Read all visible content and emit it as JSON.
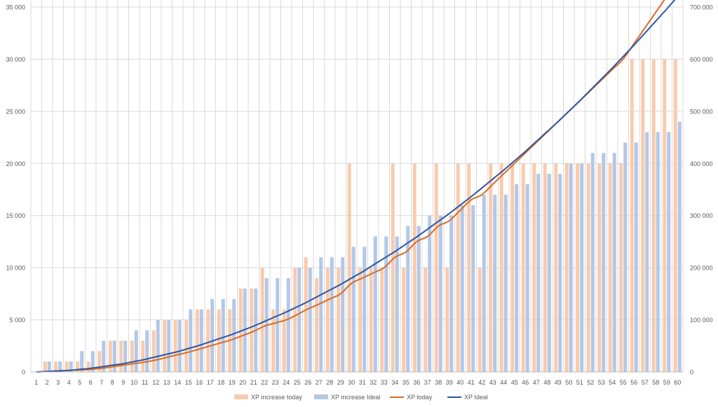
{
  "chart_data": {
    "type": "bar",
    "title": "",
    "categories": [
      "1",
      "2",
      "3",
      "4",
      "5",
      "6",
      "7",
      "8",
      "9",
      "10",
      "11",
      "12",
      "13",
      "14",
      "15",
      "16",
      "17",
      "18",
      "19",
      "20",
      "21",
      "22",
      "23",
      "24",
      "25",
      "26",
      "27",
      "28",
      "29",
      "30",
      "31",
      "32",
      "33",
      "34",
      "35",
      "36",
      "37",
      "38",
      "39",
      "40",
      "41",
      "42",
      "43",
      "44",
      "45",
      "46",
      "47",
      "48",
      "49",
      "50",
      "51",
      "52",
      "53",
      "54",
      "55",
      "56",
      "57",
      "58",
      "59",
      "60"
    ],
    "y_left": {
      "min": 0,
      "max": 35000,
      "ticks": [
        0,
        5000,
        10000,
        15000,
        20000,
        25000,
        30000,
        35000
      ],
      "tick_labels": [
        "0",
        "5 000",
        "10 000",
        "15 000",
        "20 000",
        "25 000",
        "30 000",
        "35 000"
      ]
    },
    "y_right": {
      "min": 0,
      "max": 700000,
      "ticks": [
        0,
        100000,
        200000,
        300000,
        400000,
        500000,
        600000,
        700000
      ],
      "tick_labels": [
        "0",
        "100 000",
        "200 000",
        "300 000",
        "400 000",
        "500 000",
        "600 000",
        "700 000"
      ]
    },
    "grid": true,
    "legend_position": "bottom",
    "series": [
      {
        "name": "XP increase today",
        "kind": "bar",
        "axis": "left",
        "color": "#f8cbad",
        "values": [
          0,
          1000,
          1000,
          1000,
          1000,
          1000,
          2000,
          3000,
          3000,
          3000,
          3000,
          4000,
          5000,
          5000,
          5000,
          6000,
          6000,
          6000,
          6000,
          8000,
          8000,
          10000,
          6000,
          6000,
          10000,
          11000,
          9000,
          10000,
          10000,
          20000,
          10000,
          10000,
          10000,
          20000,
          10000,
          20000,
          10000,
          20000,
          10000,
          20000,
          20000,
          10000,
          20000,
          20000,
          20000,
          20000,
          20000,
          20000,
          20000,
          20000,
          20000,
          20000,
          20000,
          20000,
          20000,
          30000,
          30000,
          30000,
          30000,
          30000
        ]
      },
      {
        "name": "XP increase Ideal",
        "kind": "bar",
        "axis": "left",
        "color": "#b4c7e7",
        "values": [
          0,
          1000,
          1000,
          1000,
          2000,
          2000,
          3000,
          3000,
          3000,
          4000,
          4000,
          5000,
          5000,
          5000,
          6000,
          6000,
          7000,
          7000,
          7000,
          8000,
          8000,
          9000,
          9000,
          9000,
          10000,
          10000,
          11000,
          11000,
          11000,
          12000,
          12000,
          13000,
          13000,
          13000,
          14000,
          14000,
          15000,
          15000,
          15000,
          16000,
          16000,
          17000,
          17000,
          17000,
          18000,
          18000,
          19000,
          19000,
          19000,
          20000,
          20000,
          21000,
          21000,
          21000,
          22000,
          22000,
          23000,
          23000,
          23000,
          24000
        ]
      },
      {
        "name": "XP today",
        "kind": "line",
        "axis": "right",
        "color": "#d96c27",
        "values": [
          0,
          1000,
          2000,
          3000,
          4000,
          5000,
          7000,
          10000,
          13000,
          16000,
          19000,
          23000,
          28000,
          33000,
          38000,
          44000,
          50000,
          56000,
          62000,
          70000,
          78000,
          88000,
          94000,
          100000,
          110000,
          121000,
          130000,
          140000,
          150000,
          170000,
          180000,
          190000,
          200000,
          220000,
          230000,
          250000,
          260000,
          280000,
          290000,
          310000,
          330000,
          340000,
          360000,
          380000,
          400000,
          420000,
          440000,
          460000,
          480000,
          500000,
          520000,
          540000,
          560000,
          580000,
          600000,
          630000,
          660000,
          690000,
          720000,
          750000
        ]
      },
      {
        "name": "XP Ideal",
        "kind": "line",
        "axis": "right",
        "color": "#2f55a0",
        "values": [
          0,
          1000,
          2000,
          3000,
          5000,
          7000,
          10000,
          13000,
          16000,
          20000,
          24000,
          29000,
          34000,
          39000,
          45000,
          51000,
          58000,
          65000,
          72000,
          80000,
          88000,
          97000,
          106000,
          115000,
          125000,
          135000,
          146000,
          157000,
          168000,
          180000,
          192000,
          205000,
          218000,
          231000,
          245000,
          259000,
          274000,
          289000,
          304000,
          320000,
          336000,
          353000,
          370000,
          387000,
          405000,
          423000,
          442000,
          461000,
          480000,
          500000,
          520000,
          541000,
          562000,
          583000,
          605000,
          627000,
          650000,
          673000,
          696000,
          720000
        ]
      }
    ]
  }
}
